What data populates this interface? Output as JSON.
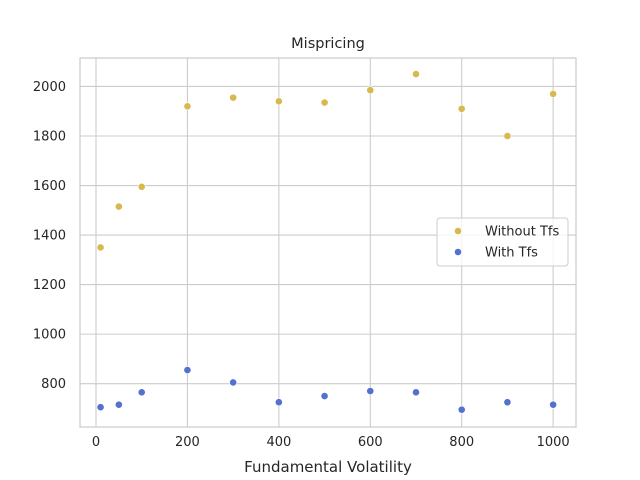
{
  "chart_data": {
    "type": "scatter",
    "title": "Mispricing",
    "xlabel": "Fundamental Volatility",
    "ylabel": "",
    "xlim": [
      -35,
      1050
    ],
    "ylim": [
      625,
      2115
    ],
    "xticks": [
      0,
      200,
      400,
      600,
      800,
      1000
    ],
    "yticks": [
      800,
      1000,
      1200,
      1400,
      1600,
      1800,
      2000
    ],
    "grid": true,
    "legend_position": "center-right",
    "series": [
      {
        "name": "Without Tfs",
        "color": "#d8b94f",
        "x": [
          10,
          50,
          100,
          200,
          300,
          400,
          500,
          600,
          700,
          800,
          900,
          1000
        ],
        "y": [
          1350,
          1515,
          1595,
          1920,
          1955,
          1940,
          1935,
          1985,
          2050,
          1910,
          1800,
          1970
        ]
      },
      {
        "name": "With Tfs",
        "color": "#5470d1",
        "x": [
          10,
          50,
          100,
          200,
          300,
          400,
          500,
          600,
          700,
          800,
          900,
          1000
        ],
        "y": [
          705,
          715,
          765,
          855,
          805,
          725,
          750,
          770,
          765,
          695,
          725,
          715
        ]
      }
    ]
  }
}
